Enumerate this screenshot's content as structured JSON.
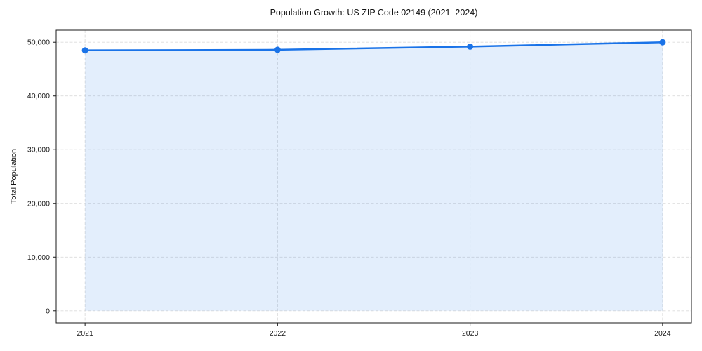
{
  "chart_data": {
    "type": "area",
    "title": "Population Growth: US ZIP Code 02149 (2021–2024)",
    "xlabel": "",
    "ylabel": "Total Population",
    "categories": [
      "2021",
      "2022",
      "2023",
      "2024"
    ],
    "series": [
      {
        "name": "Total Population",
        "values": [
          48500,
          48600,
          49200,
          50000
        ]
      }
    ],
    "yticks": [
      0,
      10000,
      20000,
      30000,
      40000,
      50000
    ],
    "ytick_labels": [
      "0",
      "10,000",
      "20,000",
      "30,000",
      "40,000",
      "50,000"
    ],
    "ylim": [
      -2250,
      52250
    ],
    "grid": true,
    "grid_style": "dashed",
    "legend": "none",
    "colors": {
      "line": "#1a73e8",
      "marker": "#1a73e8",
      "fill": "rgba(26, 115, 232, 0.12)",
      "grid": "#dcdcdc",
      "spine": "#1a1a1a",
      "text": "#1a1a1a",
      "background": "#ffffff"
    }
  }
}
